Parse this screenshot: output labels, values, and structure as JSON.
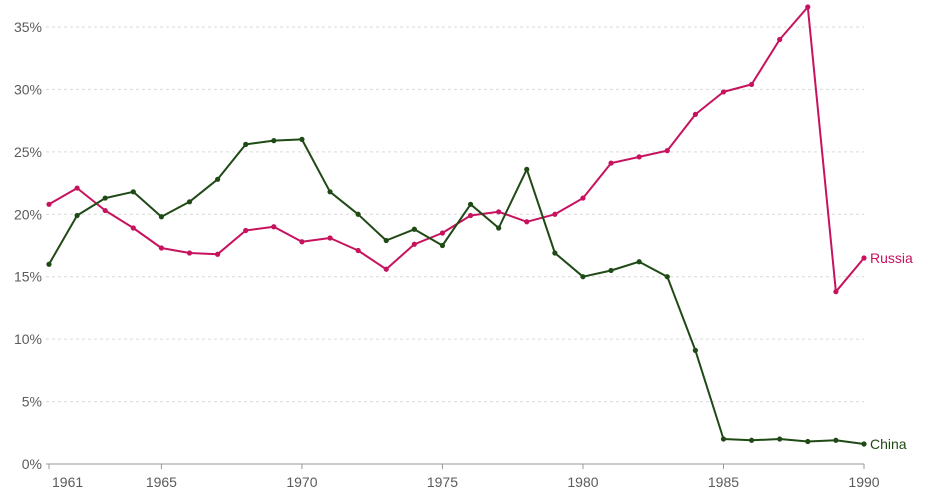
{
  "chart_data": {
    "type": "line",
    "x": [
      1961,
      1962,
      1963,
      1964,
      1965,
      1966,
      1967,
      1968,
      1969,
      1970,
      1971,
      1972,
      1973,
      1974,
      1975,
      1976,
      1977,
      1978,
      1979,
      1980,
      1981,
      1982,
      1983,
      1984,
      1985,
      1986,
      1987,
      1988,
      1989,
      1990
    ],
    "x_ticks": [
      1961,
      1965,
      1970,
      1975,
      1980,
      1985,
      1990
    ],
    "x_tick_labels": [
      "1961",
      "1965",
      "1970",
      "1975",
      "1980",
      "1985",
      "1990"
    ],
    "ylim": [
      0,
      35
    ],
    "y_ticks": [
      0,
      5,
      10,
      15,
      20,
      25,
      30,
      35
    ],
    "y_tick_labels": [
      "0%",
      "5%",
      "10%",
      "15%",
      "20%",
      "25%",
      "30%",
      "35%"
    ],
    "grid": true,
    "series": [
      {
        "name": "Russia",
        "color": "#c7135e",
        "values": [
          20.8,
          22.1,
          20.3,
          18.9,
          17.3,
          16.9,
          16.8,
          18.7,
          19.0,
          17.8,
          18.1,
          17.1,
          15.6,
          17.6,
          18.5,
          19.9,
          20.2,
          19.4,
          20.0,
          21.3,
          24.1,
          24.6,
          25.1,
          28.0,
          29.8,
          30.4,
          34.0,
          36.6,
          13.8,
          16.5
        ]
      },
      {
        "name": "China",
        "color": "#1f4a16",
        "values": [
          16.0,
          19.9,
          21.3,
          21.8,
          19.8,
          21.0,
          22.8,
          25.6,
          25.9,
          26.0,
          21.8,
          20.0,
          17.9,
          18.8,
          17.5,
          20.8,
          18.9,
          23.6,
          16.9,
          15.0,
          15.5,
          16.2,
          15.0,
          9.1,
          2.0,
          1.9,
          2.0,
          1.8,
          1.9,
          1.6
        ]
      }
    ]
  }
}
